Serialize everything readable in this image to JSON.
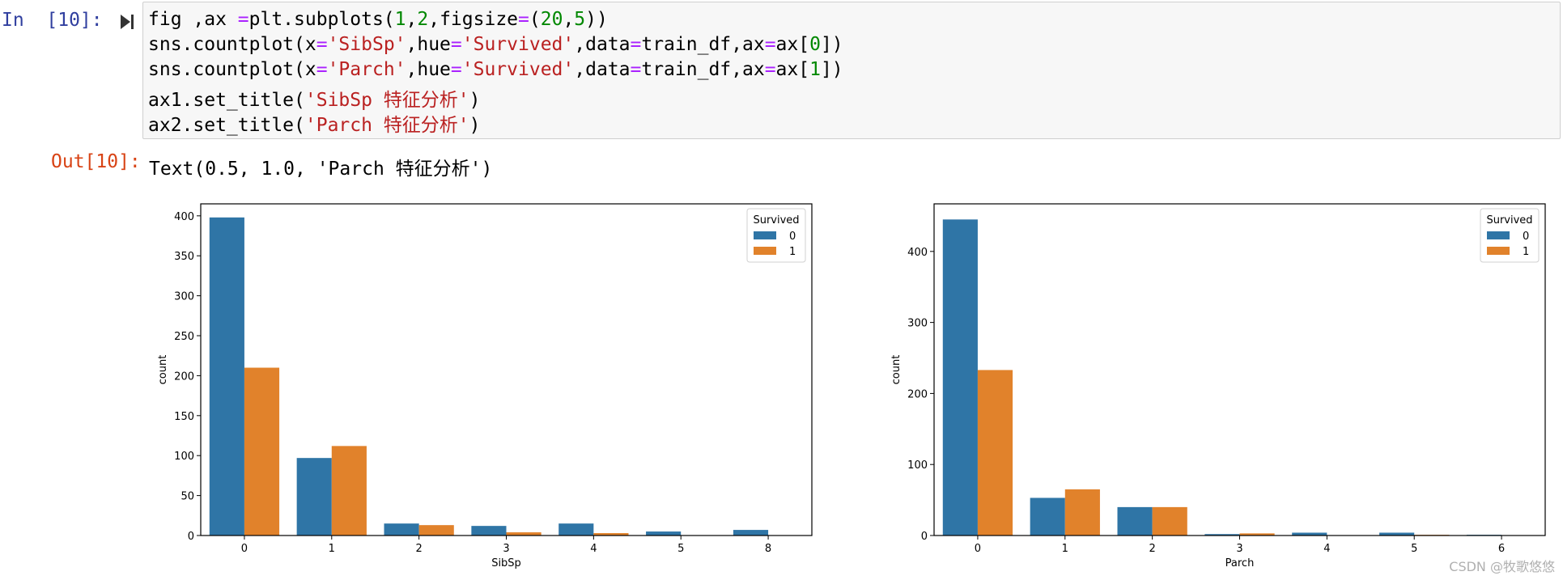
{
  "cell": {
    "in_prompt": "In  [10]:",
    "out_prompt": "Out[10]:",
    "run_icon": "run-step-icon",
    "code_lines": [
      [
        {
          "t": "fig ,ax "
        },
        {
          "t": "=",
          "c": "op"
        },
        {
          "t": "plt.subplots("
        },
        {
          "t": "1",
          "c": "num"
        },
        {
          "t": ","
        },
        {
          "t": "2",
          "c": "num"
        },
        {
          "t": ",figsize"
        },
        {
          "t": "=",
          "c": "op"
        },
        {
          "t": "("
        },
        {
          "t": "20",
          "c": "num"
        },
        {
          "t": ","
        },
        {
          "t": "5",
          "c": "num"
        },
        {
          "t": "))"
        }
      ],
      [
        {
          "t": "sns.countplot(x"
        },
        {
          "t": "=",
          "c": "op"
        },
        {
          "t": "'SibSp'",
          "c": "str"
        },
        {
          "t": ",hue"
        },
        {
          "t": "=",
          "c": "op"
        },
        {
          "t": "'Survived'",
          "c": "str"
        },
        {
          "t": ",data"
        },
        {
          "t": "=",
          "c": "op"
        },
        {
          "t": "train_df,ax"
        },
        {
          "t": "=",
          "c": "op"
        },
        {
          "t": "ax["
        },
        {
          "t": "0",
          "c": "num"
        },
        {
          "t": "])"
        }
      ],
      [
        {
          "t": "sns.countplot(x"
        },
        {
          "t": "=",
          "c": "op"
        },
        {
          "t": "'Parch'",
          "c": "str"
        },
        {
          "t": ",hue"
        },
        {
          "t": "=",
          "c": "op"
        },
        {
          "t": "'Survived'",
          "c": "str"
        },
        {
          "t": ",data"
        },
        {
          "t": "=",
          "c": "op"
        },
        {
          "t": "train_df,ax"
        },
        {
          "t": "=",
          "c": "op"
        },
        {
          "t": "ax["
        },
        {
          "t": "1",
          "c": "num"
        },
        {
          "t": "])"
        }
      ],
      [
        {
          "t": "ax1.set_title("
        },
        {
          "t": "'SibSp 特征分析'",
          "c": "str"
        },
        {
          "t": ")"
        }
      ],
      [
        {
          "t": "ax2.set_title("
        },
        {
          "t": "'Parch 特征分析'",
          "c": "str"
        },
        {
          "t": ")"
        }
      ]
    ],
    "output_text": "Text(0.5, 1.0, 'Parch 特征分析')"
  },
  "watermark": "CSDN @牧歌悠悠",
  "chart_data": [
    {
      "type": "bar",
      "title": "",
      "xlabel": "SibSp",
      "ylabel": "count",
      "categories": [
        "0",
        "1",
        "2",
        "3",
        "4",
        "5",
        "8"
      ],
      "ylim": [
        0,
        415
      ],
      "yticks": [
        0,
        50,
        100,
        150,
        200,
        250,
        300,
        350,
        400
      ],
      "legend": {
        "title": "Survived",
        "placement": "top-right"
      },
      "series": [
        {
          "name": "0",
          "color": "#2f75a6",
          "values": [
            398,
            97,
            15,
            12,
            15,
            5,
            7
          ]
        },
        {
          "name": "1",
          "color": "#e1822b",
          "values": [
            210,
            112,
            13,
            4,
            3,
            0,
            0
          ]
        }
      ]
    },
    {
      "type": "bar",
      "title": "",
      "xlabel": "Parch",
      "ylabel": "count",
      "categories": [
        "0",
        "1",
        "2",
        "3",
        "4",
        "5",
        "6"
      ],
      "ylim": [
        0,
        467
      ],
      "yticks": [
        0,
        100,
        200,
        300,
        400
      ],
      "legend": {
        "title": "Survived",
        "placement": "top-right"
      },
      "series": [
        {
          "name": "0",
          "color": "#2f75a6",
          "values": [
            445,
            53,
            40,
            2,
            4,
            4,
            1
          ]
        },
        {
          "name": "1",
          "color": "#e1822b",
          "values": [
            233,
            65,
            40,
            3,
            0,
            1,
            0
          ]
        }
      ]
    }
  ]
}
